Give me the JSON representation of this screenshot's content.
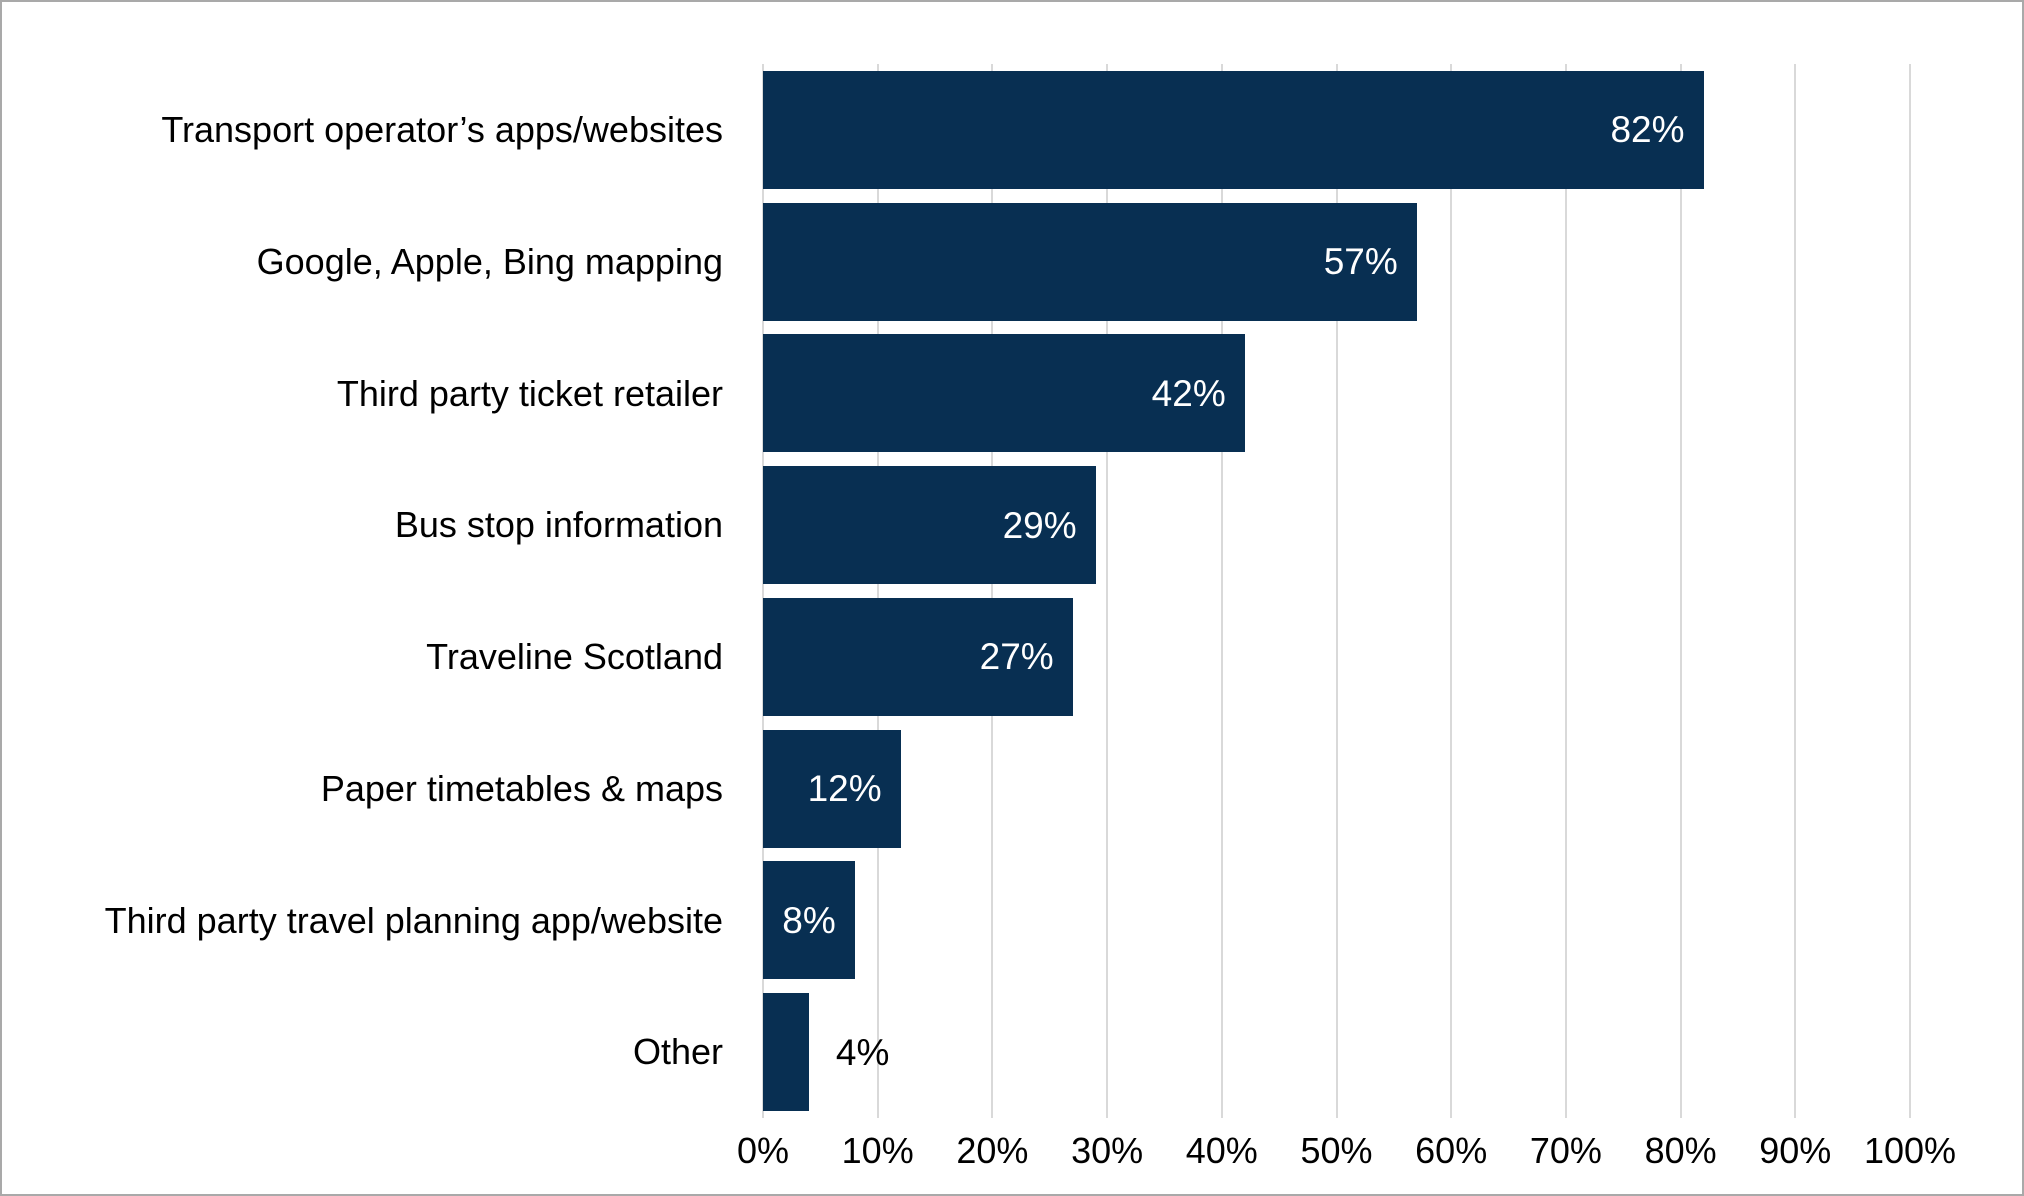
{
  "chart_data": {
    "type": "bar",
    "orientation": "horizontal",
    "title": "",
    "xlabel": "",
    "ylabel": "",
    "xlim": [
      0,
      100
    ],
    "grid": "vertical-gridlines-every-10-percent",
    "legend": "none",
    "categories": [
      "Transport operator’s apps/websites",
      "Google, Apple, Bing mapping",
      "Third party ticket retailer",
      "Bus stop information",
      "Traveline Scotland",
      "Paper timetables & maps",
      "Third party travel planning app/website",
      "Other"
    ],
    "values": [
      82,
      57,
      42,
      29,
      27,
      12,
      8,
      4
    ],
    "value_labels": [
      "82%",
      "57%",
      "42%",
      "29%",
      "27%",
      "12%",
      "8%",
      "4%"
    ],
    "value_label_positions": [
      "inside",
      "inside",
      "inside",
      "inside",
      "inside",
      "inside",
      "inside",
      "outside"
    ],
    "x_tick_labels": [
      "0%",
      "10%",
      "20%",
      "30%",
      "40%",
      "50%",
      "60%",
      "70%",
      "80%",
      "90%",
      "100%"
    ],
    "colors": {
      "bar_fill": "#082f52",
      "value_label_inside": "#ffffff",
      "value_label_outside": "#000000",
      "gridline": "#d9d9d9",
      "background": "#ffffff",
      "frame_border": "#a9a9a9",
      "text": "#000000"
    }
  }
}
